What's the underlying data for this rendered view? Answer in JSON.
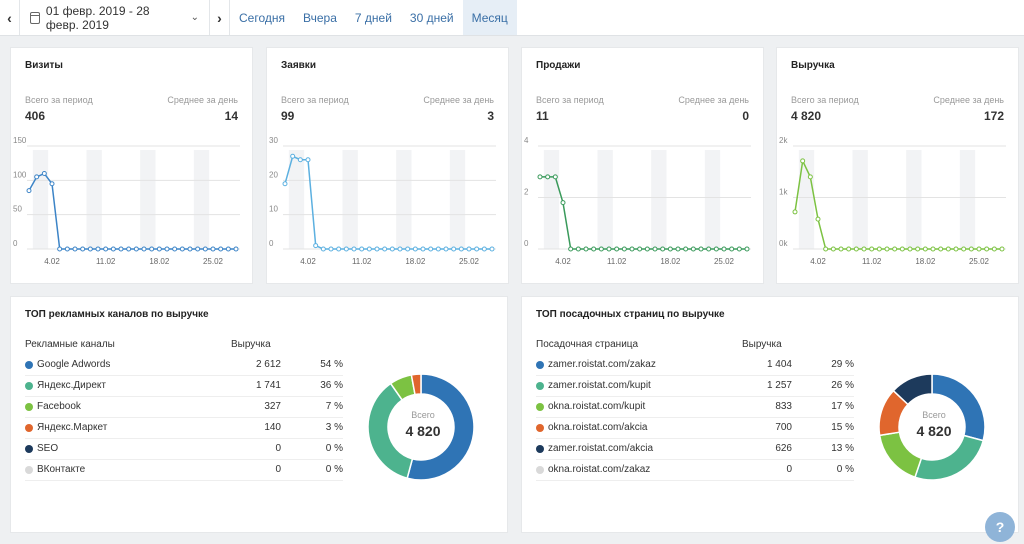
{
  "toolbar": {
    "date_range": "01 февр. 2019 - 28 февр. 2019",
    "tabs": [
      "Сегодня",
      "Вчера",
      "7 дней",
      "30 дней",
      "Месяц"
    ],
    "active_tab": "Месяц"
  },
  "labels": {
    "total_period": "Всего за период",
    "avg_day": "Среднее за день"
  },
  "metrics": [
    {
      "title": "Визиты",
      "total": "406",
      "avg": "14",
      "color": "#3c84c7"
    },
    {
      "title": "Заявки",
      "total": "99",
      "avg": "3",
      "color": "#5cb0e0"
    },
    {
      "title": "Продажи",
      "total": "11",
      "avg": "0",
      "color": "#3a9a5b"
    },
    {
      "title": "Выручка",
      "total": "4 820",
      "avg": "172",
      "color": "#7cc242"
    }
  ],
  "chart_data": [
    {
      "type": "line",
      "title": "Визиты",
      "x_ticks": [
        "4.02",
        "11.02",
        "18.02",
        "25.02"
      ],
      "y_ticks": [
        "150",
        "100",
        "50",
        "0"
      ],
      "ylim": [
        0,
        150
      ],
      "values": [
        85,
        105,
        110,
        95,
        0,
        0,
        0,
        0,
        0,
        0,
        0,
        0,
        0,
        0,
        0,
        0,
        0,
        0,
        0,
        0,
        0,
        0,
        0,
        0,
        0,
        0,
        0,
        0
      ]
    },
    {
      "type": "line",
      "title": "Заявки",
      "x_ticks": [
        "4.02",
        "11.02",
        "18.02",
        "25.02"
      ],
      "y_ticks": [
        "30",
        "20",
        "10",
        "0"
      ],
      "ylim": [
        0,
        30
      ],
      "values": [
        19,
        27,
        26,
        26,
        1,
        0,
        0,
        0,
        0,
        0,
        0,
        0,
        0,
        0,
        0,
        0,
        0,
        0,
        0,
        0,
        0,
        0,
        0,
        0,
        0,
        0,
        0,
        0
      ]
    },
    {
      "type": "line",
      "title": "Продажи",
      "x_ticks": [
        "4.02",
        "11.02",
        "18.02",
        "25.02"
      ],
      "y_ticks": [
        "4",
        "2",
        "0"
      ],
      "ylim": [
        0,
        4
      ],
      "values": [
        2.8,
        2.8,
        2.8,
        1.8,
        0,
        0,
        0,
        0,
        0,
        0,
        0,
        0,
        0,
        0,
        0,
        0,
        0,
        0,
        0,
        0,
        0,
        0,
        0,
        0,
        0,
        0,
        0,
        0
      ]
    },
    {
      "type": "line",
      "title": "Выручка",
      "x_ticks": [
        "4.02",
        "11.02",
        "18.02",
        "25.02"
      ],
      "y_ticks": [
        "2k",
        "1k",
        "0k"
      ],
      "ylim": [
        0,
        2000
      ],
      "values": [
        720,
        1710,
        1400,
        580,
        0,
        0,
        0,
        0,
        0,
        0,
        0,
        0,
        0,
        0,
        0,
        0,
        0,
        0,
        0,
        0,
        0,
        0,
        0,
        0,
        0,
        0,
        0,
        0
      ]
    }
  ],
  "channels": {
    "title": "ТОП рекламных каналов по выручке",
    "col1": "Рекламные каналы",
    "col2": "Выручка",
    "total_label": "Всего",
    "total": "4 820",
    "rows": [
      {
        "name": "Google Adwords",
        "value": "2 612",
        "pct": "54 %",
        "color": "#2f74b5",
        "num": 2612
      },
      {
        "name": "Яндекс.Директ",
        "value": "1 741",
        "pct": "36 %",
        "color": "#4db38e",
        "num": 1741
      },
      {
        "name": "Facebook",
        "value": "327",
        "pct": "7 %",
        "color": "#7cc242",
        "num": 327
      },
      {
        "name": "Яндекс.Маркет",
        "value": "140",
        "pct": "3 %",
        "color": "#e0662d",
        "num": 140
      },
      {
        "name": "SEO",
        "value": "0",
        "pct": "0 %",
        "color": "#1d3a5c",
        "num": 0
      },
      {
        "name": "ВКонтакте",
        "value": "0",
        "pct": "0 %",
        "color": "#d9d9d9",
        "num": 0
      }
    ]
  },
  "pages": {
    "title": "ТОП посадочных страниц по выручке",
    "col1": "Посадочная страница",
    "col2": "Выручка",
    "total_label": "Всего",
    "total": "4 820",
    "rows": [
      {
        "name": "zamer.roistat.com/zakaz",
        "value": "1 404",
        "pct": "29 %",
        "color": "#2f74b5",
        "num": 1404
      },
      {
        "name": "zamer.roistat.com/kupit",
        "value": "1 257",
        "pct": "26 %",
        "color": "#4db38e",
        "num": 1257
      },
      {
        "name": "okna.roistat.com/kupit",
        "value": "833",
        "pct": "17 %",
        "color": "#7cc242",
        "num": 833
      },
      {
        "name": "okna.roistat.com/akcia",
        "value": "700",
        "pct": "15 %",
        "color": "#e0662d",
        "num": 700
      },
      {
        "name": "zamer.roistat.com/akcia",
        "value": "626",
        "pct": "13 %",
        "color": "#1d3a5c",
        "num": 626
      },
      {
        "name": "okna.roistat.com/zakaz",
        "value": "0",
        "pct": "0 %",
        "color": "#d9d9d9",
        "num": 0
      }
    ]
  },
  "help": "?"
}
